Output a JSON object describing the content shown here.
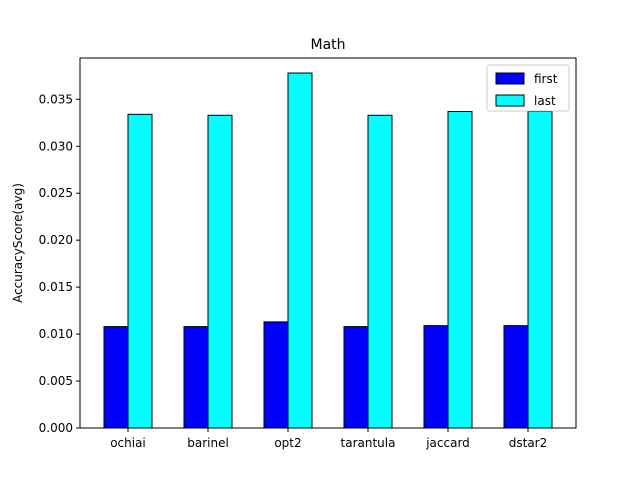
{
  "chart_data": {
    "type": "bar",
    "title": "Math",
    "xlabel": "",
    "ylabel": "AccuracyScore(avg)",
    "categories": [
      "ochiai",
      "barinel",
      "opt2",
      "tarantula",
      "jaccard",
      "dstar2"
    ],
    "series": [
      {
        "name": "first",
        "color": "#0000ff",
        "values": [
          0.0108,
          0.0108,
          0.0113,
          0.0108,
          0.0109,
          0.0109
        ]
      },
      {
        "name": "last",
        "color": "#00ffff",
        "values": [
          0.0334,
          0.0333,
          0.0378,
          0.0333,
          0.0337,
          0.0337
        ]
      }
    ],
    "ylim": [
      0,
      0.0394
    ],
    "yticks": [
      "0.000",
      "0.005",
      "0.010",
      "0.015",
      "0.020",
      "0.025",
      "0.030",
      "0.035"
    ],
    "ytick_values": [
      0,
      0.005,
      0.01,
      0.015,
      0.02,
      0.025,
      0.03,
      0.035
    ],
    "grid": false,
    "legend_position": "top-right"
  }
}
